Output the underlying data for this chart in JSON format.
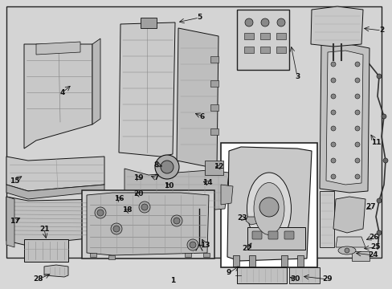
{
  "bg_color": "#d8d8d8",
  "border_color": "#222222",
  "fig_width": 4.89,
  "fig_height": 3.6,
  "dpi": 100,
  "inner_bg": "#d4d4d4",
  "line_color": "#111111",
  "part_fill": "#e8e8e8",
  "part_edge": "#222222"
}
